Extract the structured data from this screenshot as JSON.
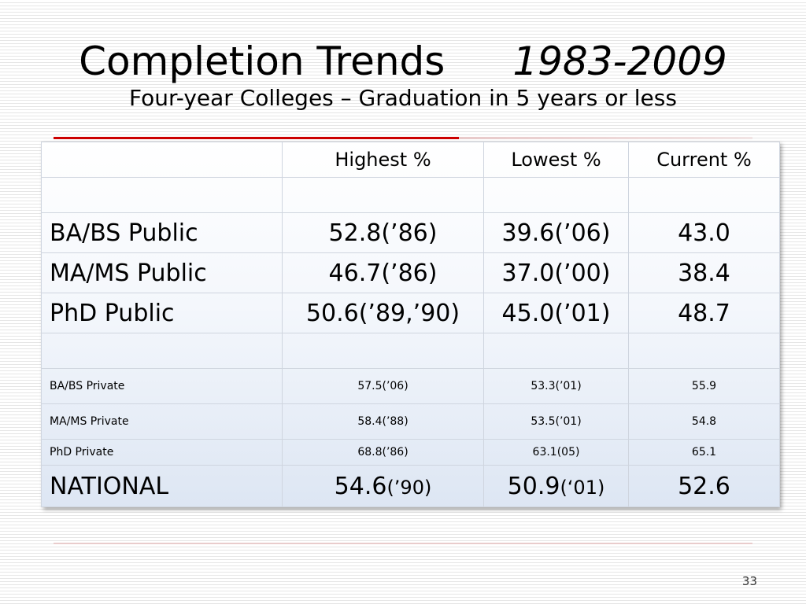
{
  "slide": {
    "title": "Completion Trends",
    "title_years": "1983-2009",
    "subtitle": "Four-year Colleges – Graduation in 5 years or less",
    "page_number": "33"
  },
  "table": {
    "headers": [
      "",
      "Highest %",
      "Lowest %",
      "Current %"
    ],
    "rows": {
      "ba_bs_public": {
        "label": "BA/BS Public",
        "highest": "52.8(’86)",
        "lowest": "39.6(’06)",
        "current": "43.0"
      },
      "ma_ms_public": {
        "label": "MA/MS Public",
        "highest": "46.7(’86)",
        "lowest": "37.0(’00)",
        "current": "38.4"
      },
      "phd_public": {
        "label": "PhD Public",
        "highest": "50.6(’89,’90)",
        "lowest": "45.0(’01)",
        "current": "48.7"
      },
      "ba_bs_private": {
        "label": "BA/BS Private",
        "highest": "57.5(’06)",
        "lowest": "53.3(’01)",
        "current": "55.9"
      },
      "ma_ms_private": {
        "label": "MA/MS Private",
        "highest": "58.4(’88)",
        "lowest": "53.5(’01)",
        "current": "54.8"
      },
      "phd_private": {
        "label": "PhD Private",
        "highest": "68.8(’86)",
        "lowest": "63.1(05)",
        "current": "65.1"
      },
      "national": {
        "label": "NATIONAL",
        "highest_value": "54.6",
        "highest_year": "(’90)",
        "lowest_value": "50.9",
        "lowest_year": "(‘01)",
        "current": "52.6"
      }
    }
  },
  "colors": {
    "accent_rule": "#cc0000",
    "table_gradient_bottom": "#dde6f3"
  }
}
